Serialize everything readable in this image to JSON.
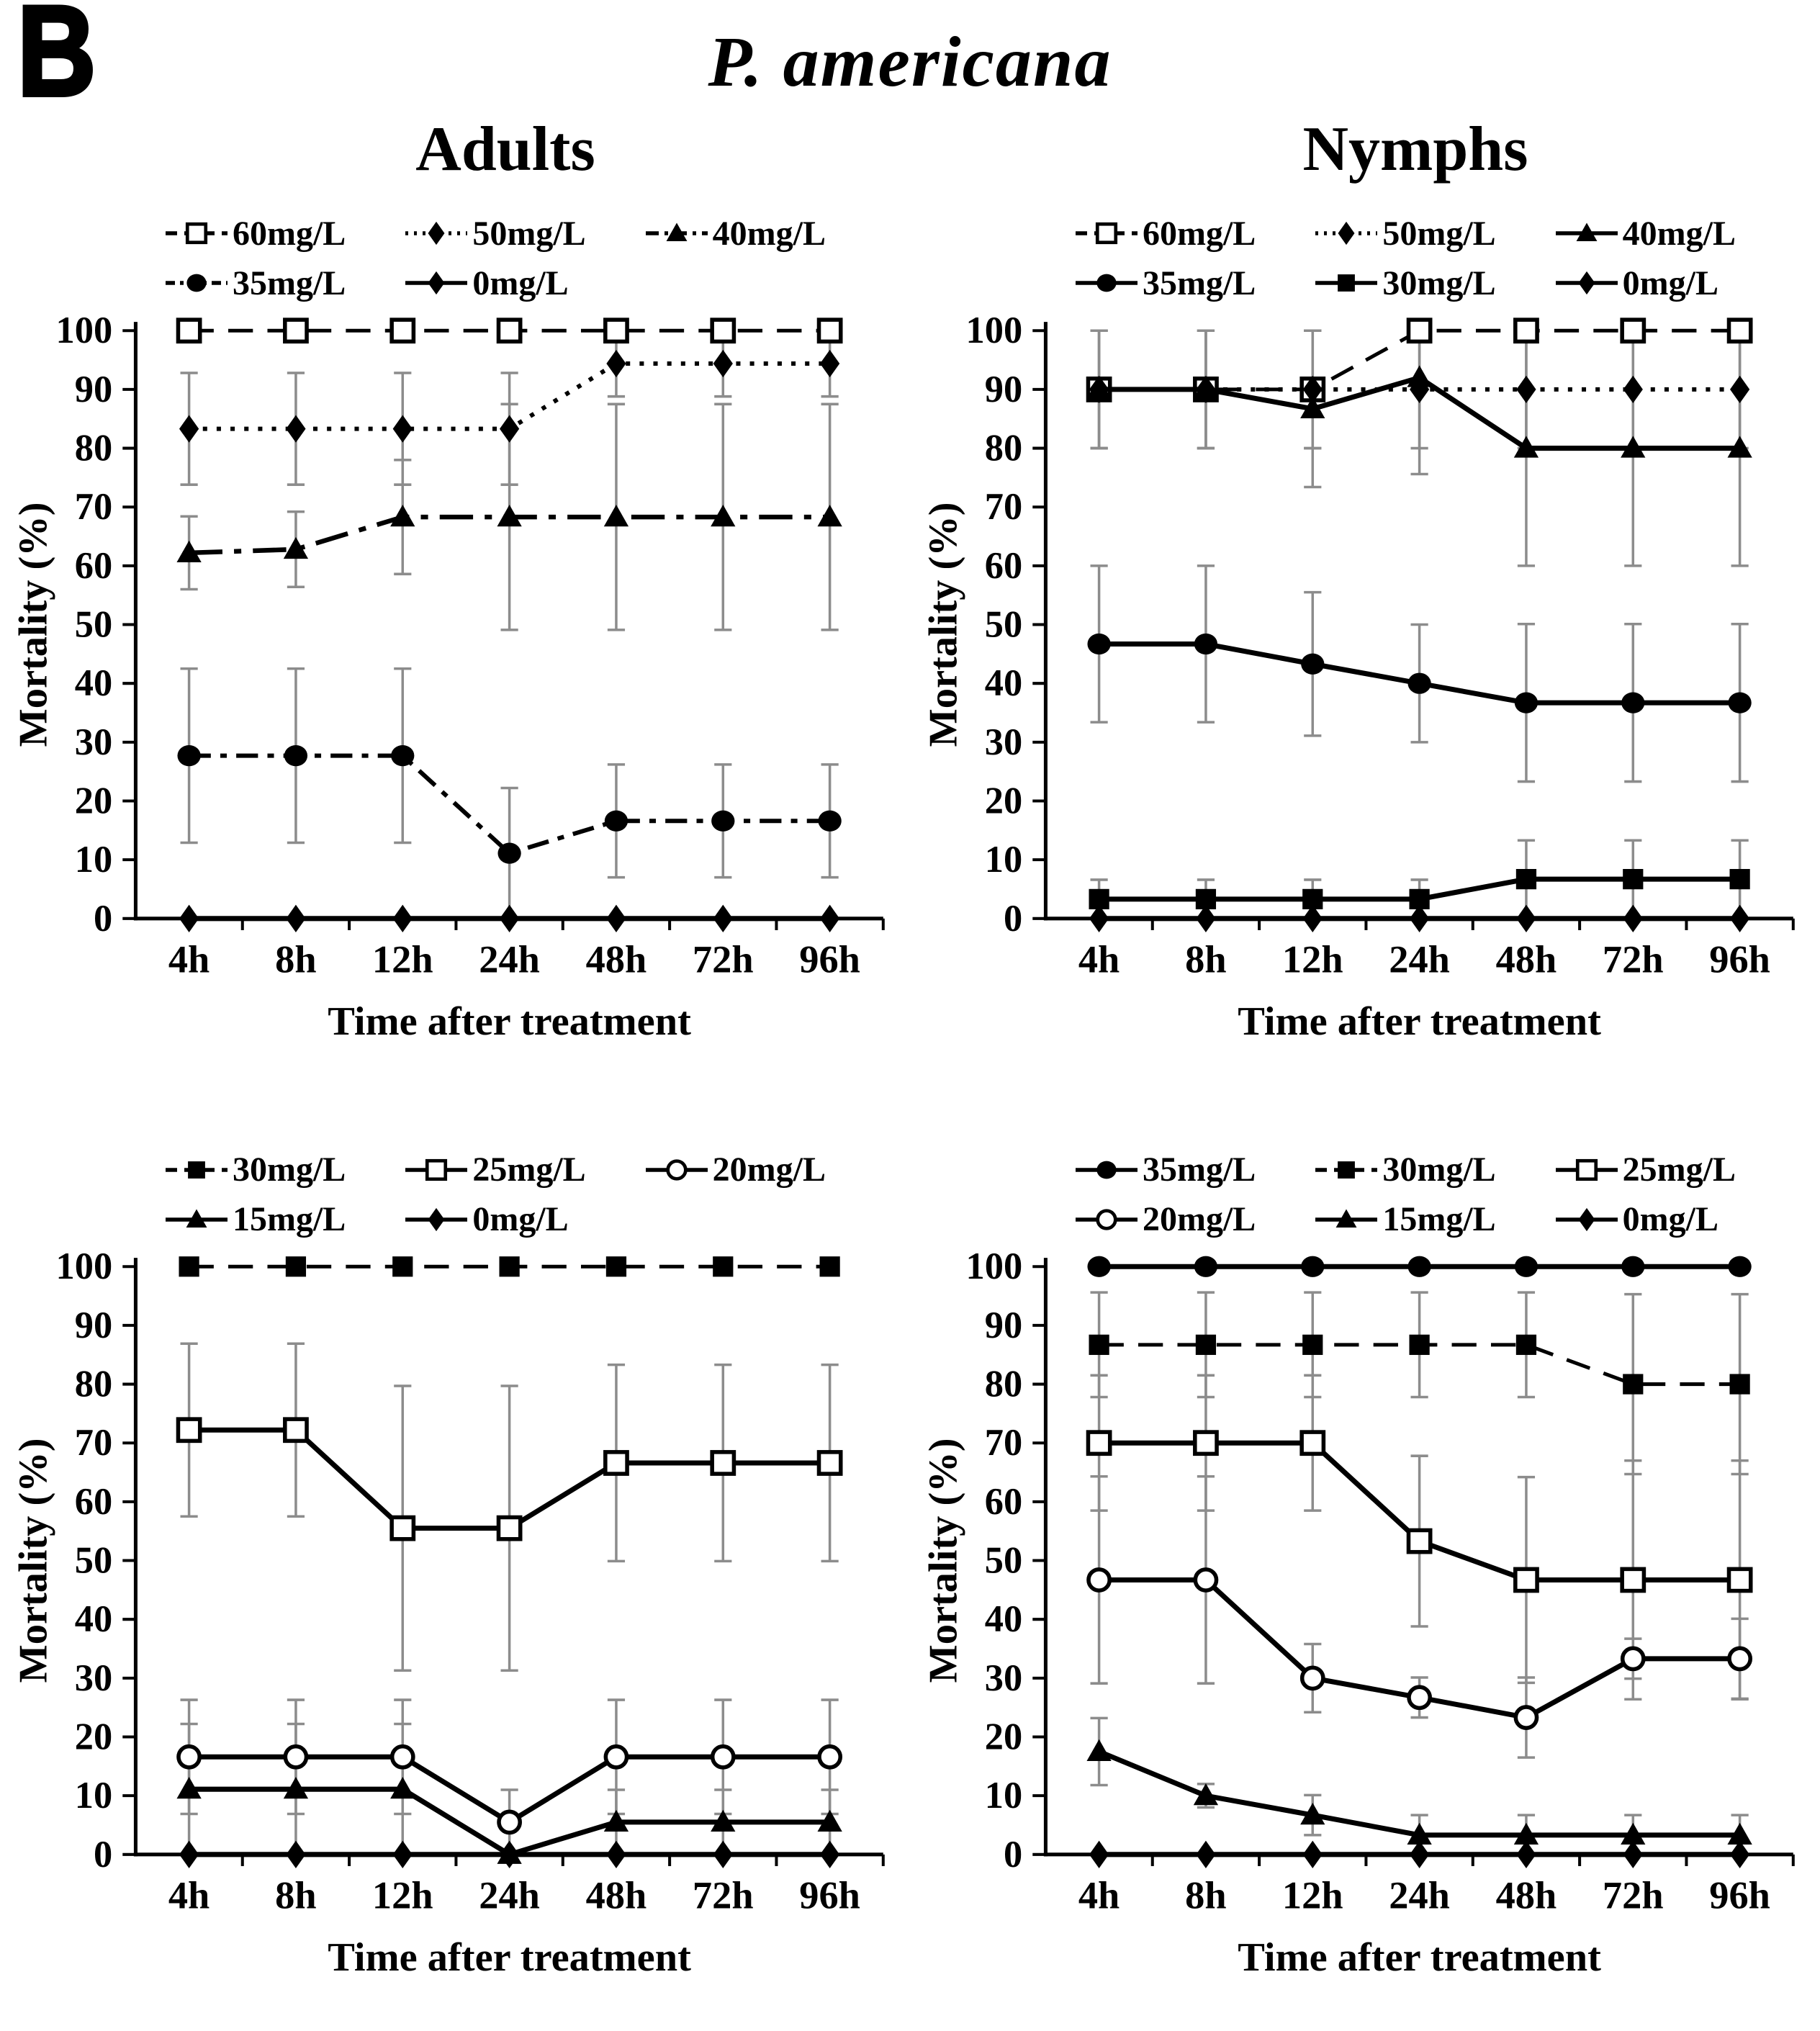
{
  "figure": {
    "panel_label": "B",
    "title": "P. americana",
    "column_headers": [
      "Adults",
      "Nymphs"
    ],
    "colors": {
      "line": "#000000",
      "error_bar": "#8c8c8c",
      "background": "#ffffff",
      "marker_fill": "#ffffff"
    }
  },
  "chart_data": [
    {
      "type": "line",
      "group": "Adults",
      "position": "top-left",
      "xlabel": "Time after treatment",
      "ylabel": "Mortality (%)",
      "ylim": [
        0,
        100
      ],
      "ytick_step": 10,
      "grid": false,
      "categories": [
        "4h",
        "8h",
        "12h",
        "24h",
        "48h",
        "72h",
        "96h"
      ],
      "legend_layout": [
        [
          "60mg/L",
          "50mg/L",
          "40mg/L"
        ],
        [
          "35mg/L",
          "0mg/L"
        ]
      ],
      "series": [
        {
          "name": "60mg/L",
          "marker": "open-square",
          "line_style": "dashed",
          "values": [
            100,
            100,
            100,
            100,
            100,
            100,
            100
          ],
          "errors": [
            0,
            0,
            0,
            0,
            0,
            0,
            0
          ]
        },
        {
          "name": "50mg/L",
          "marker": "filled-diamond",
          "line_style": "dotted",
          "values": [
            83.3,
            83.3,
            83.3,
            83.3,
            94.4,
            94.4,
            94.4
          ],
          "errors": [
            9.5,
            9.5,
            9.5,
            9.5,
            5.6,
            5.6,
            5.6
          ]
        },
        {
          "name": "40mg/L",
          "marker": "filled-triangle",
          "line_style": "dash-dot",
          "values": [
            62.2,
            62.8,
            68.3,
            68.3,
            68.3,
            68.3,
            68.3
          ],
          "errors": [
            6.2,
            6.4,
            9.7,
            19.2,
            19.2,
            19.2,
            19.2
          ]
        },
        {
          "name": "35mg/L",
          "marker": "filled-circle",
          "line_style": "dash-dot-2",
          "values": [
            27.7,
            27.7,
            27.7,
            11.1,
            16.6,
            16.6,
            16.6
          ],
          "errors": [
            14.8,
            14.8,
            14.8,
            11.1,
            9.6,
            9.6,
            9.6
          ]
        },
        {
          "name": "0mg/L",
          "marker": "filled-diamond",
          "line_style": "solid",
          "values": [
            0,
            0,
            0,
            0,
            0,
            0,
            0
          ],
          "errors": [
            0,
            0,
            0,
            0,
            0,
            0,
            0
          ]
        }
      ]
    },
    {
      "type": "line",
      "group": "Nymphs",
      "position": "top-right",
      "xlabel": "Time after treatment",
      "ylabel": "Mortality (%)",
      "ylim": [
        0,
        100
      ],
      "ytick_step": 10,
      "grid": false,
      "categories": [
        "4h",
        "8h",
        "12h",
        "24h",
        "48h",
        "72h",
        "96h"
      ],
      "legend_layout": [
        [
          "60mg/L",
          "50mg/L",
          "40mg/L"
        ],
        [
          "35mg/L",
          "30mg/L",
          "0mg/L"
        ]
      ],
      "series": [
        {
          "name": "60mg/L",
          "marker": "open-square",
          "line_style": "dashed",
          "values": [
            90,
            90,
            90,
            100,
            100,
            100,
            100
          ],
          "errors": [
            10,
            10,
            10,
            0,
            0,
            0,
            0
          ]
        },
        {
          "name": "50mg/L",
          "marker": "filled-diamond",
          "line_style": "dotted",
          "values": [
            90,
            90,
            90,
            90,
            90,
            90,
            90
          ],
          "errors": [
            10,
            10,
            10,
            10,
            10,
            10,
            10
          ]
        },
        {
          "name": "40mg/L",
          "marker": "filled-triangle",
          "line_style": "solid",
          "values": [
            90,
            90,
            86.7,
            92,
            80,
            80,
            80
          ],
          "errors": [
            10,
            10,
            13.3,
            16.4,
            20,
            20,
            20
          ]
        },
        {
          "name": "35mg/L",
          "marker": "filled-circle",
          "line_style": "solid",
          "values": [
            46.7,
            46.7,
            43.3,
            40,
            36.7,
            36.7,
            36.7
          ],
          "errors": [
            13.3,
            13.3,
            12.2,
            10,
            13.4,
            13.4,
            13.4
          ]
        },
        {
          "name": "30mg/L",
          "marker": "filled-square",
          "line_style": "solid",
          "values": [
            3.3,
            3.3,
            3.3,
            3.3,
            6.7,
            6.7,
            6.7
          ],
          "errors": [
            3.3,
            3.3,
            3.3,
            3.3,
            6.6,
            6.6,
            6.6
          ]
        },
        {
          "name": "0mg/L",
          "marker": "filled-diamond",
          "line_style": "solid",
          "values": [
            0,
            0,
            0,
            0,
            0,
            0,
            0
          ],
          "errors": [
            0,
            0,
            0,
            0,
            0,
            0,
            0
          ]
        }
      ]
    },
    {
      "type": "line",
      "group": "Adults",
      "position": "bottom-left",
      "xlabel": "Time after treatment",
      "ylabel": "Mortality (%)",
      "ylim": [
        0,
        100
      ],
      "ytick_step": 10,
      "grid": false,
      "categories": [
        "4h",
        "8h",
        "12h",
        "24h",
        "48h",
        "72h",
        "96h"
      ],
      "legend_layout": [
        [
          "30mg/L",
          "25mg/L",
          "20mg/L"
        ],
        [
          "15mg/L",
          "0mg/L"
        ]
      ],
      "series": [
        {
          "name": "30mg/L",
          "marker": "filled-square",
          "line_style": "dashed",
          "values": [
            100,
            100,
            100,
            100,
            100,
            100,
            100
          ],
          "errors": [
            0,
            0,
            0,
            0,
            0,
            0,
            0
          ]
        },
        {
          "name": "25mg/L",
          "marker": "open-square",
          "line_style": "solid",
          "values": [
            72.2,
            72.2,
            55.5,
            55.5,
            66.6,
            66.6,
            66.6
          ],
          "errors": [
            14.7,
            14.7,
            24.2,
            24.2,
            16.7,
            16.7,
            16.7
          ]
        },
        {
          "name": "20mg/L",
          "marker": "open-circle",
          "line_style": "solid",
          "values": [
            16.6,
            16.6,
            16.6,
            5.5,
            16.6,
            16.6,
            16.6
          ],
          "errors": [
            9.7,
            9.7,
            9.7,
            5.5,
            9.7,
            9.7,
            9.7
          ]
        },
        {
          "name": "15mg/L",
          "marker": "filled-triangle",
          "line_style": "solid",
          "values": [
            11.1,
            11.1,
            11.1,
            0,
            5.5,
            5.5,
            5.5
          ],
          "errors": [
            11.1,
            11.1,
            11.1,
            0,
            5.5,
            5.5,
            5.5
          ]
        },
        {
          "name": "0mg/L",
          "marker": "filled-diamond",
          "line_style": "solid",
          "values": [
            0,
            0,
            0,
            0,
            0,
            0,
            0
          ],
          "errors": [
            0,
            0,
            0,
            0,
            0,
            0,
            0
          ]
        }
      ]
    },
    {
      "type": "line",
      "group": "Nymphs",
      "position": "bottom-right",
      "xlabel": "Time after treatment",
      "ylabel": "Mortality (%)",
      "ylim": [
        0,
        100
      ],
      "ytick_step": 10,
      "grid": false,
      "categories": [
        "4h",
        "8h",
        "12h",
        "24h",
        "48h",
        "72h",
        "96h"
      ],
      "legend_layout": [
        [
          "35mg/L",
          "30mg/L",
          "25mg/L"
        ],
        [
          "20mg/L",
          "15mg/L",
          "0mg/L"
        ]
      ],
      "series": [
        {
          "name": "35mg/L",
          "marker": "filled-circle",
          "line_style": "solid",
          "values": [
            100,
            100,
            100,
            100,
            100,
            100,
            100
          ],
          "errors": [
            0,
            0,
            0,
            0,
            0,
            0,
            0
          ]
        },
        {
          "name": "30mg/L",
          "marker": "filled-square",
          "line_style": "dashed",
          "values": [
            86.7,
            86.7,
            86.7,
            86.7,
            86.7,
            80,
            80
          ],
          "errors": [
            8.9,
            8.9,
            8.9,
            8.9,
            8.9,
            15.3,
            15.3
          ]
        },
        {
          "name": "25mg/L",
          "marker": "open-square",
          "line_style": "solid",
          "values": [
            70,
            70,
            70,
            53.3,
            46.7,
            46.7,
            46.7
          ],
          "errors": [
            11.5,
            11.5,
            11.5,
            14.5,
            17.5,
            20.3,
            20.3
          ]
        },
        {
          "name": "20mg/L",
          "marker": "open-circle",
          "line_style": "solid",
          "values": [
            46.7,
            46.7,
            30,
            26.7,
            23.3,
            33.3,
            33.3
          ],
          "errors": [
            17.6,
            17.6,
            5.8,
            3.4,
            6.8,
            3.4,
            6.8
          ]
        },
        {
          "name": "15mg/L",
          "marker": "filled-triangle",
          "line_style": "solid",
          "values": [
            17.5,
            10,
            6.7,
            3.3,
            3.3,
            3.3,
            3.3
          ],
          "errors": [
            5.7,
            2,
            3.4,
            3.4,
            3.4,
            3.4,
            3.4
          ]
        },
        {
          "name": "0mg/L",
          "marker": "filled-diamond",
          "line_style": "solid",
          "values": [
            0,
            0,
            0,
            0,
            0,
            0,
            0
          ],
          "errors": [
            0,
            0,
            0,
            0,
            0,
            0,
            0
          ]
        }
      ]
    }
  ]
}
